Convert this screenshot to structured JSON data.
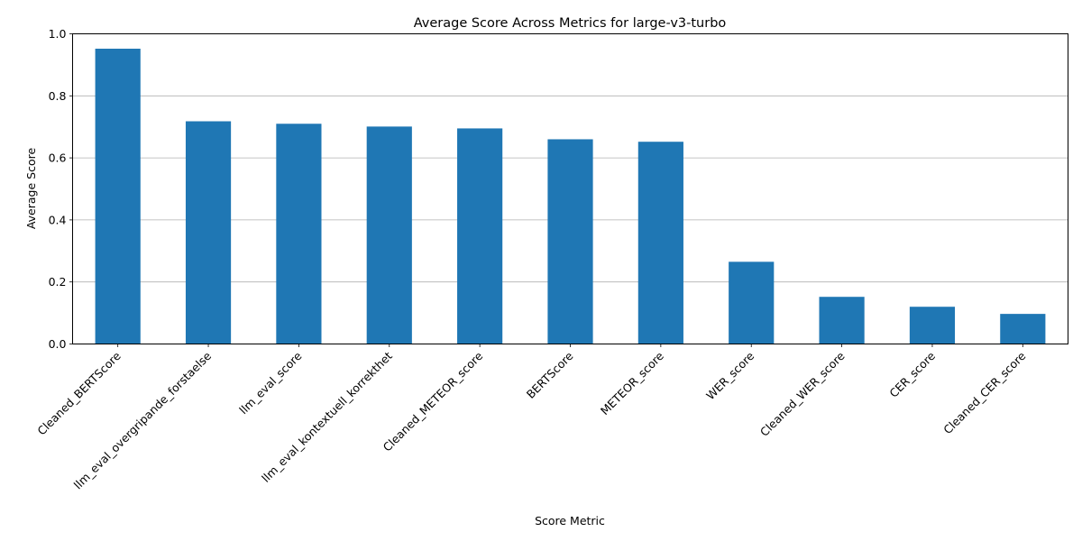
{
  "chart_data": {
    "type": "bar",
    "title": "Average Score Across Metrics for large-v3-turbo",
    "xlabel": "Score Metric",
    "ylabel": "Average Score",
    "ylim": [
      0,
      1.0
    ],
    "yticks": [
      0.0,
      0.2,
      0.4,
      0.6,
      0.8,
      1.0
    ],
    "ytick_labels": [
      "0.0",
      "0.2",
      "0.4",
      "0.6",
      "0.8",
      "1.0"
    ],
    "grid": "y-major",
    "legend": "none",
    "bar_color": "#1f77b4",
    "categories": [
      "Cleaned_BERTScore",
      "llm_eval_overgripande_forstaelse",
      "llm_eval_score",
      "llm_eval_kontextuell_korrekthet",
      "Cleaned_METEOR_score",
      "BERTScore",
      "METEOR_score",
      "WER_score",
      "Cleaned_WER_score",
      "CER_score",
      "Cleaned_CER_score"
    ],
    "values": [
      0.952,
      0.718,
      0.71,
      0.701,
      0.695,
      0.66,
      0.652,
      0.265,
      0.152,
      0.12,
      0.097
    ]
  }
}
